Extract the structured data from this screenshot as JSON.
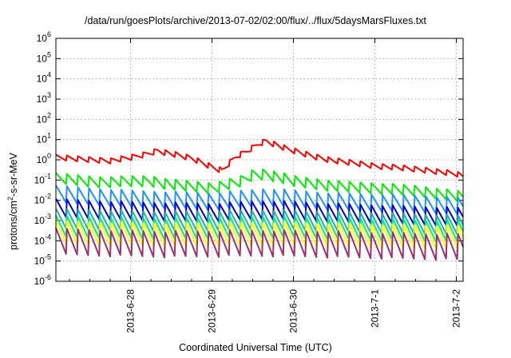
{
  "chart_data": {
    "type": "line",
    "title": "/data/run/goesPlots/archive/2013-07-02/02:00/flux/../flux/5daysMarsFluxes.txt",
    "xlabel": "Coordinated Universal Time (UTC)",
    "ylabel_parts": [
      "protons/cm",
      "2",
      "-s-sr-MeV"
    ],
    "yscale": "log",
    "ylim": [
      1e-06,
      1000000.0
    ],
    "ytick_labels": [
      {
        "base": "10",
        "exp": "-6"
      },
      {
        "base": "10",
        "exp": "-5"
      },
      {
        "base": "10",
        "exp": "-4"
      },
      {
        "base": "10",
        "exp": "-3"
      },
      {
        "base": "10",
        "exp": "-2"
      },
      {
        "base": "10",
        "exp": "-1"
      },
      {
        "base": "10",
        "exp": "0"
      },
      {
        "base": "10",
        "exp": "1"
      },
      {
        "base": "10",
        "exp": "2"
      },
      {
        "base": "10",
        "exp": "3"
      },
      {
        "base": "10",
        "exp": "4"
      },
      {
        "base": "10",
        "exp": "5"
      },
      {
        "base": "10",
        "exp": "6"
      }
    ],
    "xlim": [
      "2013-06-27 02:00",
      "2013-07-02 02:00"
    ],
    "xticks": [
      {
        "label": "2013-6-28",
        "value": "2013-06-28 00:00"
      },
      {
        "label": "2013-6-29",
        "value": "2013-06-29 00:00"
      },
      {
        "label": "2013-6-30",
        "value": "2013-06-30 00:00"
      },
      {
        "label": "2013-7-1",
        "value": "2013-07-01 00:00"
      },
      {
        "label": "2013-7-2",
        "value": "2013-07-02 00:00"
      }
    ],
    "grid": true,
    "series": [
      {
        "color": "#ff0000",
        "points": [
          [
            "2013-06-27 02:00",
            1.3
          ],
          [
            "2013-06-27 09:00",
            1.1
          ],
          [
            "2013-06-27 18:00",
            0.9
          ],
          [
            "2013-06-28 00:00",
            1.3
          ],
          [
            "2013-06-28 04:00",
            1.8
          ],
          [
            "2013-06-28 08:00",
            2.8
          ],
          [
            "2013-06-28 12:00",
            2.0
          ],
          [
            "2013-06-28 18:00",
            1.2
          ],
          [
            "2013-06-29 00:00",
            0.45
          ],
          [
            "2013-06-29 03:00",
            0.3
          ],
          [
            "2013-06-29 07:00",
            1.4
          ],
          [
            "2013-06-29 10:00",
            2.5
          ],
          [
            "2013-06-29 14:00",
            6.5
          ],
          [
            "2013-06-29 16:00",
            8.5
          ],
          [
            "2013-06-29 22:00",
            3.5
          ],
          [
            "2013-06-30 06:00",
            1.5
          ],
          [
            "2013-06-30 12:00",
            0.9
          ],
          [
            "2013-06-30 18:00",
            0.7
          ],
          [
            "2013-07-01 00:00",
            0.5
          ],
          [
            "2013-07-01 08:00",
            0.4
          ],
          [
            "2013-07-01 16:00",
            0.3
          ],
          [
            "2013-07-02 00:00",
            0.2
          ],
          [
            "2013-07-02 02:00",
            0.15
          ]
        ]
      },
      {
        "color": "#00ee00",
        "points": [
          [
            "2013-06-27 02:00",
            0.12
          ],
          [
            "2013-06-27 14:00",
            0.08
          ],
          [
            "2013-06-28 06:00",
            0.09
          ],
          [
            "2013-06-28 12:00",
            0.06
          ],
          [
            "2013-06-29 00:00",
            0.04
          ],
          [
            "2013-06-29 08:00",
            0.08
          ],
          [
            "2013-06-29 12:00",
            0.18
          ],
          [
            "2013-06-29 16:00",
            0.2
          ],
          [
            "2013-06-30 00:00",
            0.09
          ],
          [
            "2013-06-30 12:00",
            0.05
          ],
          [
            "2013-07-01 00:00",
            0.04
          ],
          [
            "2013-07-01 12:00",
            0.03
          ],
          [
            "2013-07-02 02:00",
            0.015
          ]
        ]
      },
      {
        "color": "#1e90ff",
        "points": [
          [
            "2013-06-27 02:00",
            0.02
          ],
          [
            "2013-06-28 00:00",
            0.012
          ],
          [
            "2013-06-29 00:00",
            0.009
          ],
          [
            "2013-06-29 16:00",
            0.015
          ],
          [
            "2013-06-30 12:00",
            0.009
          ],
          [
            "2013-07-01 12:00",
            0.007
          ],
          [
            "2013-07-02 02:00",
            0.005
          ]
        ]
      },
      {
        "color": "#0000cd",
        "points": [
          [
            "2013-06-27 02:00",
            0.004
          ],
          [
            "2013-06-28 00:00",
            0.003
          ],
          [
            "2013-06-29 00:00",
            0.0025
          ],
          [
            "2013-06-29 16:00",
            0.0035
          ],
          [
            "2013-06-30 12:00",
            0.0025
          ],
          [
            "2013-07-02 02:00",
            0.0015
          ]
        ]
      },
      {
        "color": "#20b2aa",
        "points": [
          [
            "2013-06-27 02:00",
            0.0012
          ],
          [
            "2013-06-28 12:00",
            0.0009
          ],
          [
            "2013-06-29 16:00",
            0.0011
          ],
          [
            "2013-07-02 02:00",
            0.0006
          ]
        ]
      },
      {
        "color": "#00ee76",
        "points": [
          [
            "2013-06-27 02:00",
            0.0005
          ],
          [
            "2013-06-28 12:00",
            0.0004
          ],
          [
            "2013-06-29 16:00",
            0.0005
          ],
          [
            "2013-07-02 02:00",
            0.0003
          ]
        ]
      },
      {
        "color": "#ffff00",
        "points": [
          [
            "2013-06-27 02:00",
            0.00025
          ],
          [
            "2013-06-28 12:00",
            0.0002
          ],
          [
            "2013-06-29 16:00",
            0.00022
          ],
          [
            "2013-07-02 02:00",
            0.00015
          ]
        ]
      },
      {
        "color": "#a0306a",
        "points": [
          [
            "2013-06-27 02:00",
            9e-05
          ],
          [
            "2013-06-28 12:00",
            7e-05
          ],
          [
            "2013-06-29 16:00",
            8e-05
          ],
          [
            "2013-07-02 02:00",
            5e-05
          ]
        ]
      }
    ],
    "note_sawtooth": "all series oscillate with a roughly 4-hour sawtooth; the lowest series dip to near 1e-5"
  }
}
